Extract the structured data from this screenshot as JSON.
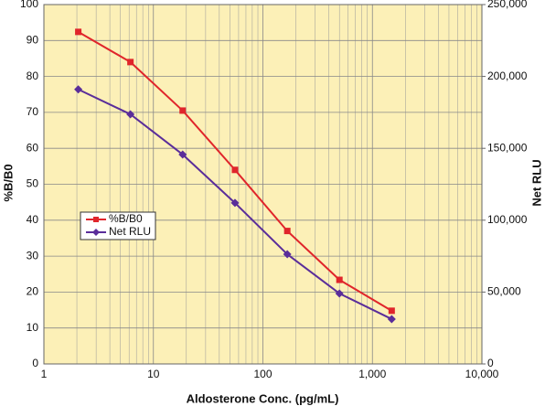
{
  "chart_data": {
    "type": "line",
    "x_label": "Aldosterone Conc. (pg/mL)",
    "y_label": "%B/B0",
    "y2_label": "Net RLU",
    "x": [
      2.06,
      6.17,
      18.5,
      55.6,
      167,
      500,
      1500
    ],
    "xscale": "log",
    "xlim": [
      1,
      10000
    ],
    "xticks": [
      1,
      10,
      100,
      {
        "value": 1000,
        "label": "1,000"
      },
      {
        "value": 10000,
        "label": "10,000"
      }
    ],
    "ylim": [
      0,
      100
    ],
    "yticks": [
      0,
      10,
      20,
      30,
      40,
      50,
      60,
      70,
      80,
      90,
      100
    ],
    "y2lim": [
      0,
      250000
    ],
    "y2ticks": [
      0,
      {
        "value": 50000,
        "label": "50,000"
      },
      {
        "value": 100000,
        "label": "100,000"
      },
      {
        "value": 150000,
        "label": "150,000"
      },
      {
        "value": 200000,
        "label": "200,000"
      },
      {
        "value": 250000,
        "label": "250,000"
      }
    ],
    "grid": true,
    "legend": "center-left",
    "series": [
      {
        "name": "%B/B0",
        "color": "#e0252b",
        "marker": "square",
        "values": [
          92.4,
          84,
          70.5,
          54,
          37,
          23.4,
          14.8
        ]
      },
      {
        "name": "Net RLU",
        "color": "#5a2d9a",
        "marker": "diamond",
        "axis": "y2",
        "values": [
          191000,
          173700,
          145700,
          112000,
          76300,
          49000,
          31200
        ]
      }
    ]
  }
}
